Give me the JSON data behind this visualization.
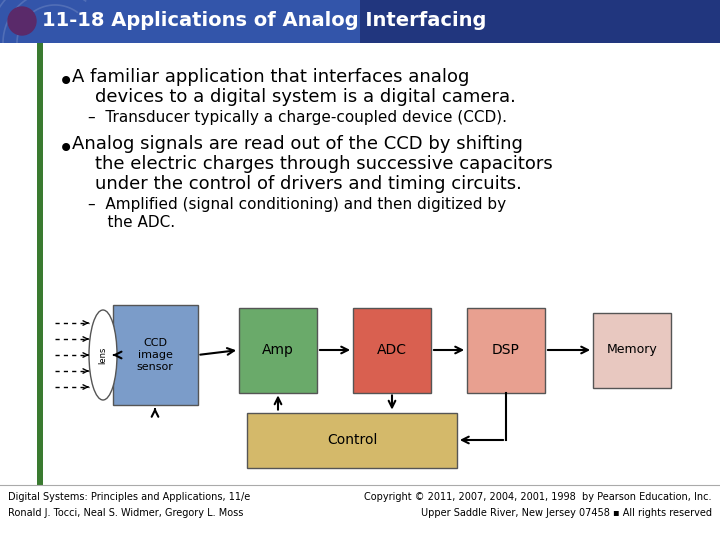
{
  "title": "11-18 Applications of Analog Interfacing",
  "title_bg_left": "#3355aa",
  "title_bg_right": "#1a2a6c",
  "title_text_color": "#ffffff",
  "header_circle_color": "#5a2a6a",
  "left_bar_color": "#3a7a30",
  "bg_color": "#ffffff",
  "content_bg": "#ffffff",
  "bullet1_main_line1": "A familiar application that interfaces analog",
  "bullet1_main_line2": "    devices to a digital system is a digital camera.",
  "bullet1_sub": "–  Transducer typically a charge-coupled device (CCD).",
  "bullet2_main_line1": "Analog signals are read out of the CCD by shifting",
  "bullet2_main_line2": "    the electric charges through successive capacitors",
  "bullet2_main_line3": "    under the control of drivers and timing circuits.",
  "bullet2_sub_line1": "–  Amplified (signal conditioning) and then digitized by",
  "bullet2_sub_line2": "    the ADC.",
  "footer_left1": "Digital Systems: Principles and Applications, 11/e",
  "footer_left2": "Ronald J. Tocci, Neal S. Widmer, Gregory L. Moss",
  "footer_right1": "Copyright © 2011, 2007, 2004, 2001, 1998  by Pearson Education, Inc.",
  "footer_right2": "Upper Saddle River, New Jersey 07458 ▪ All rights reserved",
  "ccd_color": "#7b9cc9",
  "amp_color": "#6aaa6a",
  "adc_color": "#d96050",
  "dsp_color": "#e8a090",
  "memory_color": "#e8c8c0",
  "control_color": "#d4b96a"
}
